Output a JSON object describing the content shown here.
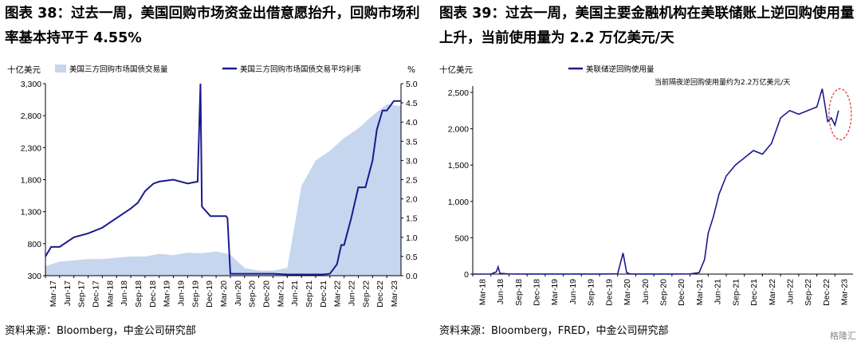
{
  "left": {
    "title": "图表 38：过去一周，美国回购市场资金出借意愿抬升，回购市场利率基本持平于 4.55%",
    "footer": "资料来源：Bloomberg，中金公司研究部"
  },
  "right": {
    "title": "图表 39：过去一周，美国主要金融机构在美联储账上逆回购使用量上升，当前使用量为 2.2 万亿美元/天",
    "footer": "资料来源：Bloomberg，FRED，中金公司研究部"
  },
  "watermark": "格隆汇",
  "chart_data": [
    {
      "type": "area+line",
      "ylabel_left": "十亿美元",
      "ylabel_right": "%",
      "ylim_left": [
        300,
        3300
      ],
      "ylim_right": [
        0.0,
        5.0
      ],
      "yticks_left": [
        "300",
        "800",
        "1,300",
        "1,800",
        "2,300",
        "2,800",
        "3,300"
      ],
      "yticks_right": [
        "0.0",
        "0.5",
        "1.0",
        "1.5",
        "2.0",
        "2.5",
        "3.0",
        "3.5",
        "4.0",
        "4.5",
        "5.0"
      ],
      "xticks": [
        "Mar-17",
        "Jun-17",
        "Sep-17",
        "Dec-17",
        "Mar-18",
        "Jun-18",
        "Sep-18",
        "Dec-18",
        "Mar-19",
        "Jun-19",
        "Sep-19",
        "Dec-19",
        "Mar-20",
        "Jun-20",
        "Sep-20",
        "Dec-20",
        "Mar-21",
        "Jun-21",
        "Sep-21",
        "Dec-21",
        "Mar-22",
        "Jun-22",
        "Sep-22",
        "Dec-22",
        "Mar-23"
      ],
      "legend_position": "top-left",
      "area_color": "#c5d6ee",
      "line_color": "#1a1a8c",
      "series": [
        {
          "name": "美国三方回购市场国债交易量",
          "axis": "left",
          "kind": "area",
          "x": [
            0,
            1,
            2,
            3,
            4,
            5,
            6,
            7,
            8,
            9,
            10,
            11,
            12,
            13,
            14,
            15,
            16,
            17,
            18,
            19,
            20,
            21,
            22,
            23,
            24,
            25
          ],
          "values": [
            450,
            520,
            540,
            560,
            560,
            580,
            600,
            600,
            640,
            620,
            660,
            650,
            680,
            630,
            420,
            380,
            380,
            420,
            1700,
            2100,
            2250,
            2450,
            2600,
            2800,
            2980,
            2950
          ]
        },
        {
          "name": "美国三方回购市场国债交易平均利率",
          "axis": "right",
          "kind": "line",
          "x": [
            0,
            0.4,
            1,
            2,
            3,
            4,
            5,
            6,
            6.5,
            7,
            7.3,
            7.6,
            8,
            9,
            10,
            10.7,
            10.9,
            11,
            11.6,
            12,
            12.7,
            12.8,
            13,
            13.5,
            14,
            15,
            16,
            17,
            18,
            19,
            19.5,
            20,
            20.5,
            20.8,
            21,
            21.5,
            22,
            22.5,
            23,
            23.3,
            23.7,
            24,
            24.5,
            25
          ],
          "values": [
            0.5,
            0.75,
            0.75,
            1.0,
            1.1,
            1.25,
            1.5,
            1.75,
            1.9,
            2.2,
            2.3,
            2.4,
            2.45,
            2.5,
            2.4,
            2.45,
            5.0,
            1.8,
            1.55,
            1.55,
            1.55,
            1.5,
            0.05,
            0.05,
            0.05,
            0.05,
            0.05,
            0.03,
            0.03,
            0.03,
            0.03,
            0.05,
            0.3,
            0.8,
            0.8,
            1.5,
            2.3,
            2.3,
            3.0,
            3.8,
            4.3,
            4.3,
            4.55,
            4.55
          ]
        }
      ]
    },
    {
      "type": "line",
      "ylabel": "十亿美元",
      "ylim": [
        0,
        2500
      ],
      "yticks": [
        "0",
        "500",
        "1,000",
        "1,500",
        "2,000",
        "2,500"
      ],
      "xticks": [
        "Mar-18",
        "Jun-18",
        "Sep-18",
        "Dec-18",
        "Mar-19",
        "Jun-19",
        "Sep-19",
        "Dec-19",
        "Mar-20",
        "Jun-20",
        "Sep-20",
        "Dec-20",
        "Mar-21",
        "Jun-21",
        "Sep-21",
        "Dec-21",
        "Mar-22",
        "Jun-22",
        "Sep-22",
        "Dec-22",
        "Mar-23"
      ],
      "legend_position": "top-left",
      "annotation": "当前隔夜逆回购使用量约为2.2万亿美元/天",
      "line_color": "#1a1a8c",
      "highlight_color": "#e0302e",
      "series": [
        {
          "name": "美联储逆回购使用量",
          "x": [
            0,
            1,
            1.3,
            1.4,
            1.5,
            2,
            3,
            4,
            5,
            6,
            7,
            8,
            8.3,
            8.5,
            8.7,
            9,
            10,
            11,
            12,
            12.5,
            12.8,
            13,
            13.3,
            13.6,
            14,
            14.5,
            15,
            15.5,
            16,
            16.5,
            17,
            17.5,
            18,
            18.5,
            19,
            19.3,
            19.6,
            19.8,
            20,
            20.2
          ],
          "values": [
            0,
            0,
            30,
            100,
            10,
            2,
            1,
            1,
            1,
            1,
            1,
            3,
            290,
            20,
            1,
            1,
            1,
            1,
            2,
            20,
            200,
            560,
            800,
            1100,
            1350,
            1500,
            1600,
            1700,
            1650,
            1800,
            2150,
            2250,
            2200,
            2250,
            2300,
            2550,
            2100,
            2150,
            2050,
            2250
          ]
        }
      ]
    }
  ]
}
